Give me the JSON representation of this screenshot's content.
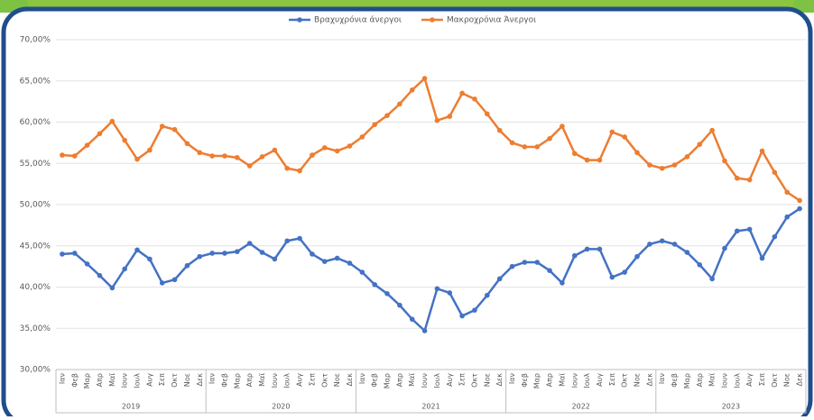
{
  "chart_data": {
    "type": "line",
    "categories": [
      "Ιαν",
      "Φεβ",
      "Μαρ",
      "Απρ",
      "Μαϊ",
      "Ιουν",
      "Ιουλ",
      "Αυγ",
      "Σεπ",
      "Οκτ",
      "Νοε",
      "Δεκ",
      "Ιαν",
      "Φεβ",
      "Μαρ",
      "Απρ",
      "Μαϊ",
      "Ιουν",
      "Ιουλ",
      "Αυγ",
      "Σεπ",
      "Οκτ",
      "Νοε",
      "Δεκ",
      "Ιαν",
      "Φεβ",
      "Μαρ",
      "Απρ",
      "Μαϊ",
      "Ιουν",
      "Ιουλ",
      "Αυγ",
      "Σεπ",
      "Οκτ",
      "Νοε",
      "Δεκ",
      "Ιαν",
      "Φεβ",
      "Μαρ",
      "Απρ",
      "Μαϊ",
      "Ιουν",
      "Ιουλ",
      "Αυγ",
      "Σεπ",
      "Οκτ",
      "Νοε",
      "Δεκ",
      "Ιαν",
      "Φεβ",
      "Μαρ",
      "Απρ",
      "Μαϊ",
      "Ιουν",
      "Ιουλ",
      "Αυγ",
      "Σεπ",
      "Οκτ",
      "Νοε",
      "Δεκ"
    ],
    "groups": [
      "2019",
      "2020",
      "2021",
      "2022",
      "2023"
    ],
    "series": [
      {
        "name": "Βραχυχρόνια άνεργοι",
        "color": "#4472c4",
        "values": [
          44.0,
          44.1,
          42.8,
          41.4,
          39.9,
          42.2,
          44.5,
          43.4,
          40.5,
          40.9,
          42.6,
          43.7,
          44.1,
          44.1,
          44.3,
          45.3,
          44.2,
          43.4,
          45.6,
          45.9,
          44.0,
          43.1,
          43.5,
          42.9,
          41.8,
          40.3,
          39.2,
          37.8,
          36.1,
          34.7,
          39.8,
          39.3,
          36.5,
          37.2,
          39.0,
          41.0,
          42.5,
          43.0,
          43.0,
          42.0,
          40.5,
          43.8,
          44.6,
          44.6,
          41.2,
          41.8,
          43.7,
          45.2,
          45.6,
          45.2,
          44.2,
          42.7,
          41.0,
          44.7,
          46.8,
          47.0,
          43.5,
          46.1,
          48.5,
          49.5
        ]
      },
      {
        "name": "Μακροχρόνια Άνεργοι",
        "color": "#ed7d31",
        "values": [
          56.0,
          55.9,
          57.2,
          58.6,
          60.1,
          57.8,
          55.5,
          56.6,
          59.5,
          59.1,
          57.4,
          56.3,
          55.9,
          55.9,
          55.7,
          54.7,
          55.8,
          56.6,
          54.4,
          54.1,
          56.0,
          56.9,
          56.5,
          57.1,
          58.2,
          59.7,
          60.8,
          62.2,
          63.9,
          65.3,
          60.2,
          60.7,
          63.5,
          62.8,
          61.0,
          59.0,
          57.5,
          57.0,
          57.0,
          58.0,
          59.5,
          56.2,
          55.4,
          55.4,
          58.8,
          58.2,
          56.3,
          54.8,
          54.4,
          54.8,
          55.8,
          57.3,
          59.0,
          55.3,
          53.2,
          53.0,
          56.5,
          53.9,
          51.5,
          50.5
        ]
      }
    ],
    "ylim": [
      30,
      70
    ],
    "yticks": [
      {
        "value": 30,
        "label": "30,00%"
      },
      {
        "value": 35,
        "label": "35,00%"
      },
      {
        "value": 40,
        "label": "40,00%"
      },
      {
        "value": 45,
        "label": "45,00%"
      },
      {
        "value": 50,
        "label": "50,00%"
      },
      {
        "value": 55,
        "label": "55,00%"
      },
      {
        "value": 60,
        "label": "60,00%"
      },
      {
        "value": 65,
        "label": "65,00%"
      },
      {
        "value": 70,
        "label": "70,00%"
      }
    ],
    "grid": true,
    "legend": "top"
  }
}
